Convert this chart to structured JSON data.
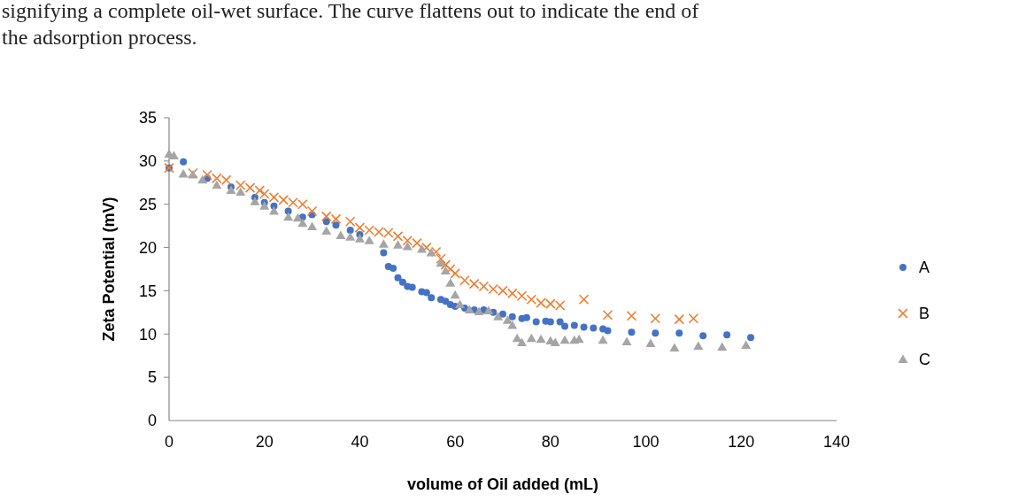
{
  "chart_data": {
    "type": "scatter",
    "xlabel": "volume of Oil added (mL)",
    "ylabel": "Zeta Potential (mV)",
    "annotations": [
      "signifying a complete oil-wet surface. The curve flattens out to indicate the end of the adsorption process."
    ],
    "xlim": [
      0,
      140
    ],
    "xticks": [
      0,
      20,
      40,
      60,
      80,
      100,
      120,
      140
    ],
    "ylim": [
      0,
      35
    ],
    "yticks": [
      0,
      5,
      10,
      15,
      20,
      25,
      30,
      35
    ],
    "grid": false,
    "legend": "right",
    "series": [
      {
        "name": "A",
        "color": "#4472c4",
        "marker": "circle",
        "x": [
          0,
          3,
          8,
          13,
          18,
          20,
          22,
          25,
          28,
          30,
          33,
          35,
          38,
          40,
          45,
          46,
          47,
          48,
          49,
          50,
          51,
          53,
          54,
          55,
          57,
          58,
          59,
          60,
          62,
          64,
          66,
          68,
          70,
          72,
          74,
          75,
          77,
          79,
          80,
          82,
          83,
          85,
          87,
          89,
          91,
          92,
          97,
          102,
          107,
          112,
          117,
          122
        ],
        "values": [
          29.2,
          29.9,
          28,
          27,
          25.8,
          25.2,
          24.8,
          24.2,
          23.5,
          23.8,
          23,
          22.6,
          22,
          21.5,
          19.4,
          17.8,
          17.6,
          16.5,
          16,
          15.5,
          15.4,
          14.9,
          14.8,
          14.2,
          14,
          13.8,
          13.4,
          13.2,
          13,
          12.8,
          12.8,
          12.5,
          12.3,
          12,
          11.8,
          11.9,
          11.4,
          11.5,
          11.4,
          11.4,
          10.9,
          11,
          10.8,
          10.7,
          10.6,
          10.4,
          10.2,
          10.1,
          10.1,
          9.8,
          9.9,
          9.6
        ]
      },
      {
        "name": "B",
        "color": "#ed7d31",
        "marker": "cross",
        "x": [
          0,
          5,
          8,
          10,
          12,
          15,
          17,
          19,
          20,
          22,
          24,
          26,
          28,
          30,
          33,
          35,
          38,
          40,
          42,
          44,
          46,
          48,
          50,
          52,
          54,
          56,
          57,
          58,
          59,
          60,
          62,
          64,
          66,
          68,
          70,
          72,
          74,
          76,
          78,
          80,
          82,
          87,
          92,
          97,
          102,
          107,
          110
        ],
        "values": [
          29.2,
          28.6,
          28.4,
          28,
          27.8,
          27.2,
          26.9,
          26.6,
          26.2,
          25.8,
          25.5,
          25.2,
          25,
          24.2,
          23.6,
          23.3,
          23,
          22.3,
          22,
          21.8,
          21.7,
          21.3,
          20.8,
          20.5,
          20,
          19.5,
          18.7,
          18,
          17.5,
          17,
          16.2,
          15.8,
          15.5,
          15.2,
          15,
          14.7,
          14.4,
          14,
          13.6,
          13.5,
          13.3,
          14,
          12.2,
          12.1,
          11.8,
          11.7,
          11.8
        ]
      },
      {
        "name": "C",
        "color": "#a5a5a5",
        "marker": "triangle",
        "x": [
          0,
          1,
          3,
          5,
          7,
          10,
          13,
          15,
          18,
          20,
          22,
          25,
          27,
          28,
          30,
          33,
          36,
          38,
          40,
          42,
          45,
          48,
          50,
          53,
          55,
          57,
          58,
          59,
          60,
          61,
          63,
          65,
          67,
          69,
          71,
          72,
          73,
          74,
          76,
          78,
          80,
          81,
          83,
          85,
          86,
          91,
          96,
          101,
          106,
          111,
          116,
          121
        ],
        "values": [
          30.8,
          30.6,
          28.5,
          28.4,
          27.8,
          27.2,
          26.6,
          26.4,
          25.3,
          24.8,
          24.2,
          23.5,
          23.4,
          22.8,
          22.4,
          21.9,
          21.4,
          21.2,
          21,
          20.8,
          20.4,
          20.3,
          20.1,
          19.8,
          19.4,
          18.2,
          17.3,
          15.9,
          14.5,
          13.4,
          12.8,
          12.6,
          12.7,
          12,
          11.6,
          11,
          9.5,
          9,
          9.5,
          9.4,
          9.2,
          9,
          9.3,
          9.3,
          9.4,
          9.3,
          9.1,
          8.9,
          8.4,
          8.6,
          8.5,
          8.7
        ]
      }
    ]
  }
}
